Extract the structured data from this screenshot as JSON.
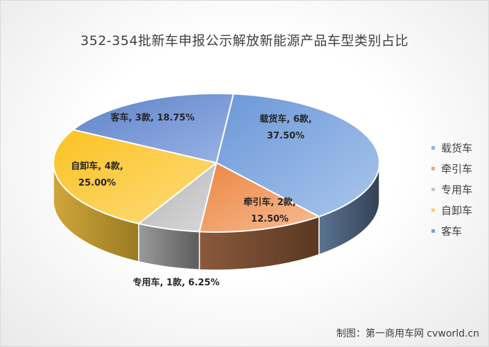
{
  "title": "352-354批新车申报公示解放新能源产品车型类别占比",
  "footer": "制图：第一商用车网 cvworld.cn",
  "legend": [
    "载货车",
    "牵引车",
    "专用车",
    "自卸车",
    "客车"
  ],
  "chart_data": {
    "type": "pie",
    "title": "352-354批新车申报公示解放新能源产品车型类别占比",
    "three_d": true,
    "legend_position": "right",
    "slices": [
      {
        "name": "载货车",
        "count": 6,
        "percent": 37.5,
        "label": "载货车, 6款, 37.50%",
        "color": "#8fb2e0",
        "dark": "#3f5063"
      },
      {
        "name": "牵引车",
        "count": 2,
        "percent": 12.5,
        "label": "牵引车, 2款, 12.50%",
        "color": "#f2a36e",
        "dark": "#6b432c"
      },
      {
        "name": "专用车",
        "count": 1,
        "percent": 6.25,
        "label": "专用车, 1款, 6.25%",
        "color": "#c7c7c7",
        "dark": "#6e6e6e"
      },
      {
        "name": "自卸车",
        "count": 4,
        "percent": 25.0,
        "label": "自卸车, 4款, 25.00%",
        "color": "#fdd060",
        "dark": "#b08e2b"
      },
      {
        "name": "客车",
        "count": 3,
        "percent": 18.75,
        "label": "客车, 3款, 18.75%",
        "color": "#7f9fd9",
        "dark": "#3c4f7c"
      }
    ]
  }
}
